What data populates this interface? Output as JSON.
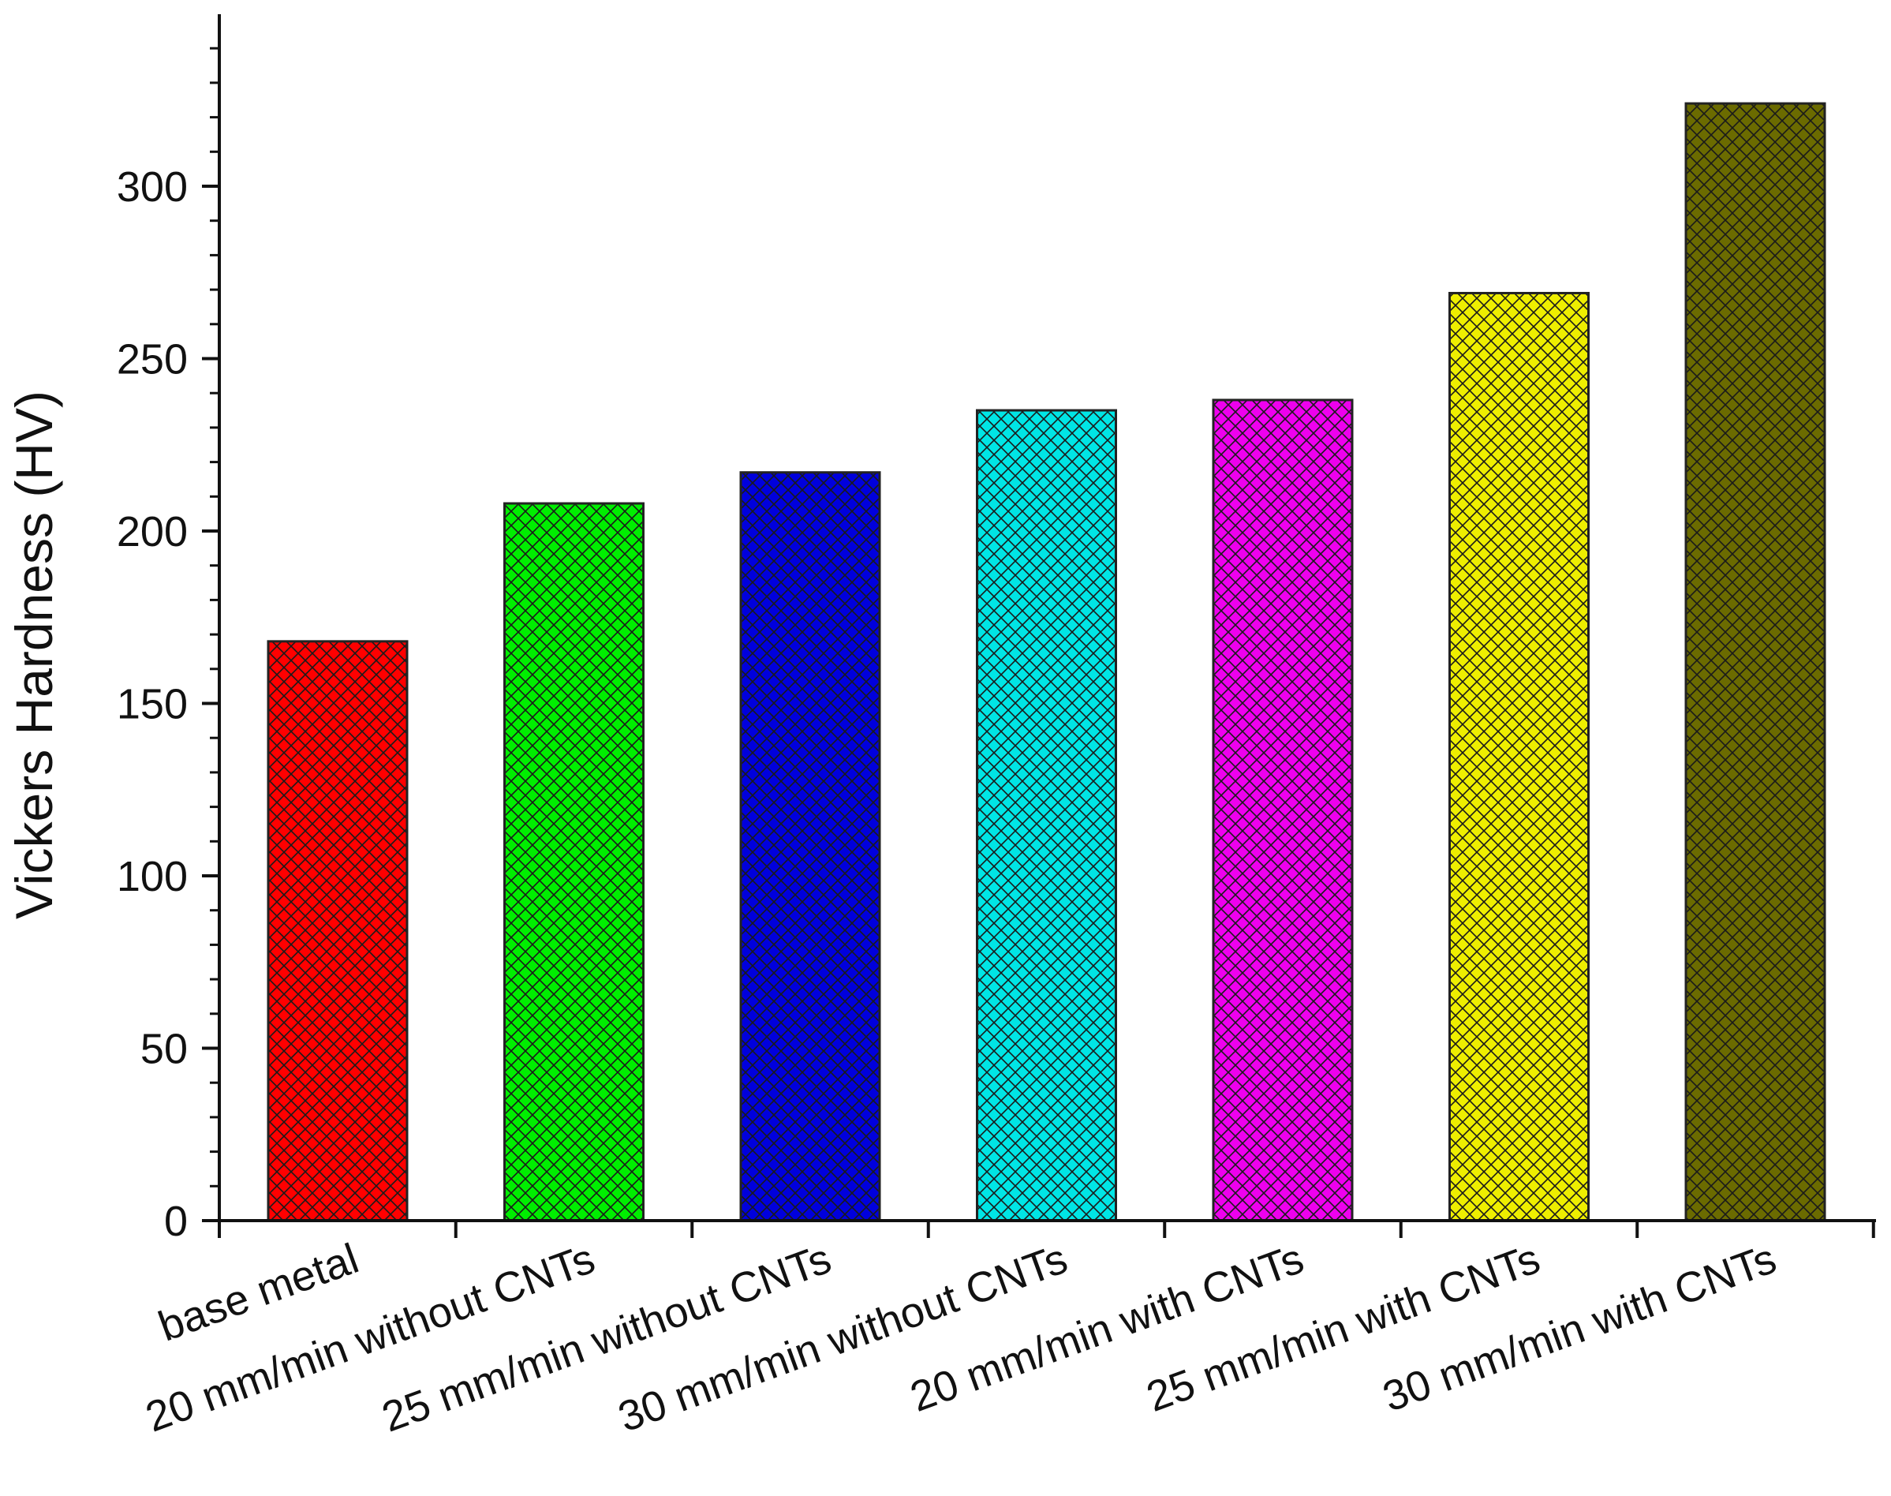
{
  "chart_data": {
    "type": "bar",
    "title": "",
    "xlabel": "",
    "ylabel": "Vickers Hardness (HV)",
    "ylim": [
      0,
      340
    ],
    "yticks": [
      0,
      50,
      100,
      150,
      200,
      250,
      300
    ],
    "grid": false,
    "legend": "none",
    "fill_pattern": "crosshatch",
    "categories": [
      "base metal",
      "20 mm/min without CNTs",
      "25 mm/min without CNTs",
      "30 mm/min without CNTs",
      "20 mm/min with CNTs",
      "25 mm/min with CNTs",
      "30 mm/min with CNTs"
    ],
    "values": [
      168,
      208,
      217,
      235,
      238,
      269,
      324
    ],
    "colors": [
      "#ff0000",
      "#00ee00",
      "#0000dd",
      "#00e5e5",
      "#ee00ee",
      "#eeee00",
      "#6b6b00"
    ]
  }
}
